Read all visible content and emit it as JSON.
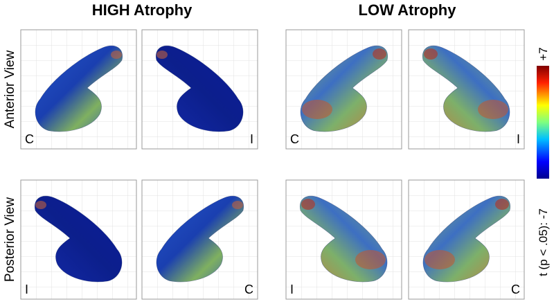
{
  "columns": [
    {
      "title": "HIGH Atrophy"
    },
    {
      "title": "LOW Atrophy"
    }
  ],
  "rows": [
    {
      "label": "Anterior View"
    },
    {
      "label": "Posterior View"
    }
  ],
  "panels": [
    {
      "label": "C"
    },
    {
      "label": "I"
    },
    {
      "label": "C"
    },
    {
      "label": "I"
    },
    {
      "label": "I"
    },
    {
      "label": "C"
    },
    {
      "label": "I"
    },
    {
      "label": "C"
    }
  ],
  "colorbar": {
    "max_label": "+7",
    "min_label": "t (p < .05): -7"
  }
}
